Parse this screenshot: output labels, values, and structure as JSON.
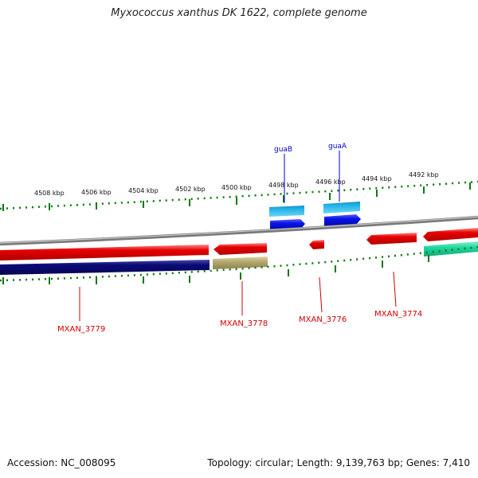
{
  "title": "Myxococcus xanthus DK 1622, complete genome",
  "footer": {
    "accession": "Accession: NC_008095",
    "summary": "Topology: circular; Length: 9,139,763 bp; Genes: 7,410"
  },
  "scale_labels": [
    "4508 kbp",
    "4506 kbp",
    "4504 kbp",
    "4502 kbp",
    "4500 kbp",
    "4498 kbp",
    "4496 kbp",
    "4494 kbp",
    "4492 kbp"
  ],
  "gene_labels_top": [
    "guaB",
    "guaA"
  ],
  "gene_labels_bottom": [
    "MXAN_3779",
    "MXAN_3778",
    "MXAN_3776",
    "MXAN_3774"
  ],
  "colors": {
    "backbone": "#8a8a8a",
    "gene_red": "#e60000",
    "gene_navy": "#0a0a78",
    "gene_olive": "#b4a86e",
    "gene_cyan": "#1fb2e8",
    "gene_blue": "#0a14e6",
    "gene_teal": "#1fd8a0",
    "tick_green": "#0a7a0a",
    "label_blue": "#0000c8",
    "label_red": "#d00000"
  }
}
